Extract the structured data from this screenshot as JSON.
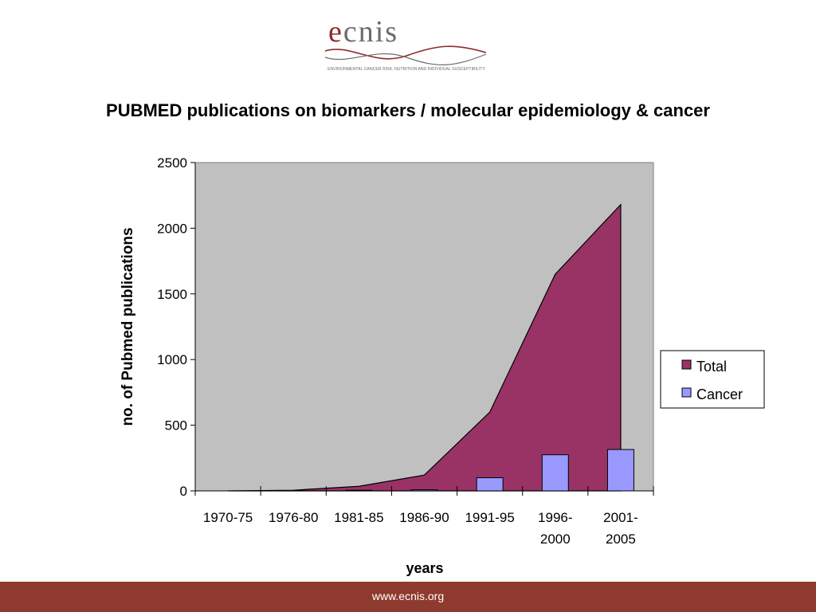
{
  "logo": {
    "wordmark_accent": "e",
    "wordmark_rest": "cnis",
    "tagline": "ENVIRONMENTAL CANCER RISK, NUTRITION AND INDIVIDUAL SUSCEPTIBILITY",
    "accent_color": "#8e2a2e",
    "wordmark_color": "#6b6b6b"
  },
  "slide": {
    "title": "PUBMED publications on biomarkers / molecular epidemiology & cancer"
  },
  "footer": {
    "url": "www.ecnis.org",
    "color": "#8e3a2e"
  },
  "chart_data": {
    "type": "area",
    "title": "PUBMED publications on biomarkers / molecular epidemiology & cancer",
    "xlabel": "years",
    "ylabel": "no. of Pubmed publications",
    "categories": [
      "1970-75",
      "1976-80",
      "1981-85",
      "1986-90",
      "1991-95",
      "1996-2000",
      "2001-2005"
    ],
    "category_labels": [
      [
        "1970-75"
      ],
      [
        "1976-80"
      ],
      [
        "1981-85"
      ],
      [
        "1986-90"
      ],
      [
        "1991-95"
      ],
      [
        "1996-",
        "2000"
      ],
      [
        "2001-",
        "2005"
      ]
    ],
    "yticks": [
      0,
      500,
      1000,
      1500,
      2000,
      2500
    ],
    "ylim": [
      0,
      2500
    ],
    "grid": false,
    "plot_background": "#c0c0c0",
    "legend_position": "right",
    "series": [
      {
        "name": "Total",
        "kind": "area",
        "color": "#993366",
        "values": [
          0,
          5,
          35,
          120,
          600,
          1650,
          2180
        ]
      },
      {
        "name": "Cancer",
        "kind": "bar",
        "color": "#9999ff",
        "values": [
          0,
          1,
          5,
          8,
          100,
          275,
          315
        ]
      }
    ]
  }
}
